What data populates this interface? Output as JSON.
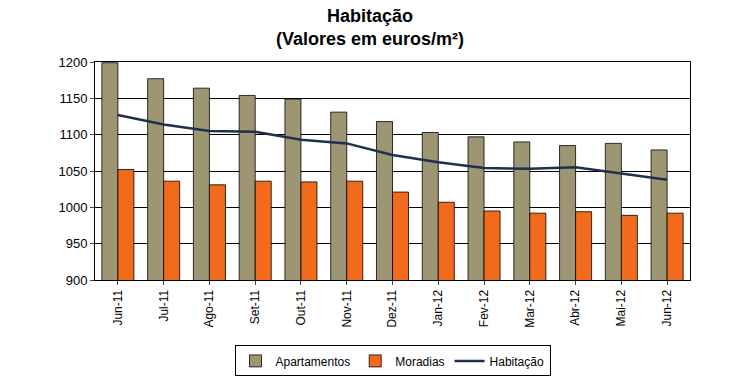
{
  "chart_data": {
    "type": "bar",
    "title": "Habitação\n(Valores em euros/m²)",
    "categories": [
      "Jun-11",
      "Jul-11",
      "Ago-11",
      "Set-11",
      "Out-11",
      "Nov-11",
      "Dez-11",
      "Jan-12",
      "Fev-12",
      "Mar-12",
      "Abr-12",
      "Mai-12",
      "Jun-12"
    ],
    "series": [
      {
        "name": "Apartamentos",
        "type": "bar",
        "color": "#9e9672",
        "values": [
          1199,
          1177,
          1164,
          1154,
          1149,
          1131,
          1118,
          1103,
          1097,
          1090,
          1085,
          1088,
          1079
        ]
      },
      {
        "name": "Moradias",
        "type": "bar",
        "color": "#f26a1b",
        "values": [
          1052,
          1036,
          1031,
          1036,
          1035,
          1036,
          1021,
          1007,
          995,
          992,
          994,
          989,
          992
        ]
      },
      {
        "name": "Habitação",
        "type": "line",
        "color": "#1f2f4f",
        "values": [
          1127,
          1114,
          1105,
          1104,
          1093,
          1088,
          1072,
          1062,
          1054,
          1053,
          1055,
          1047,
          1038
        ]
      }
    ],
    "ylim": [
      900,
      1200
    ],
    "yticks": [
      900,
      950,
      1000,
      1050,
      1100,
      1150,
      1200
    ],
    "grid": true,
    "legend": "bottom"
  }
}
